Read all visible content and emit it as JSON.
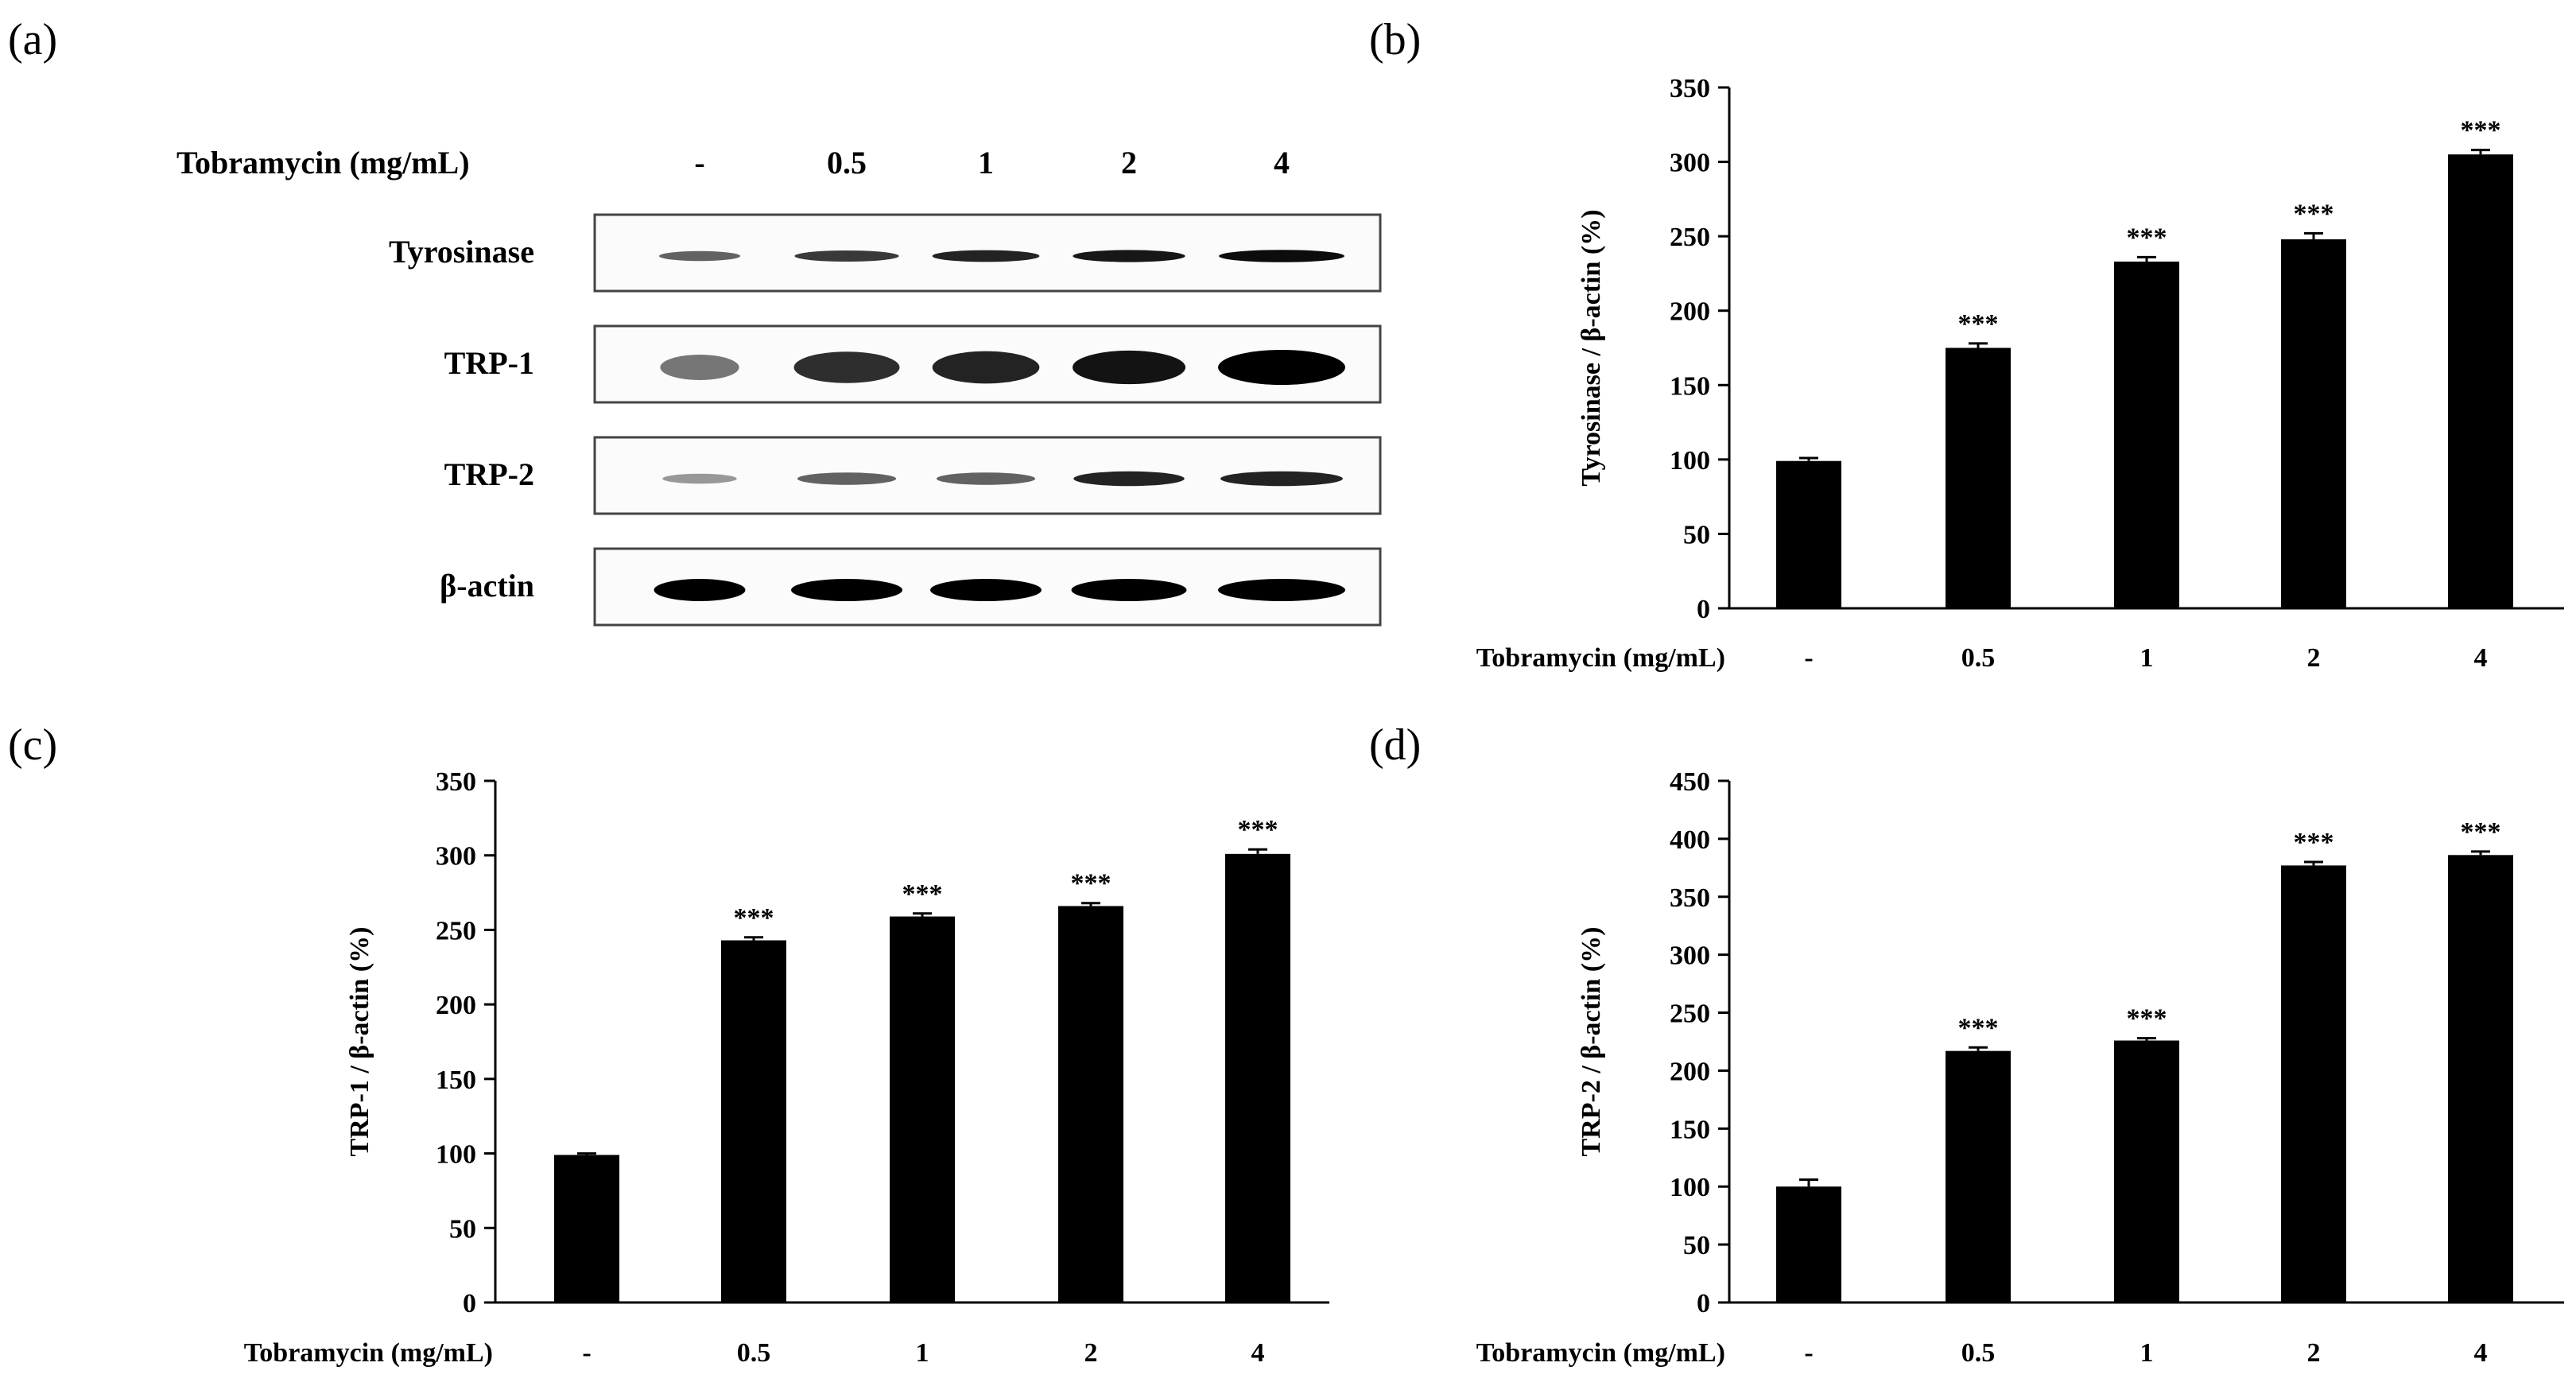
{
  "panels": {
    "a": "(a)",
    "b": "(b)",
    "c": "(c)",
    "d": "(d)"
  },
  "blot": {
    "treatment_label": "Tobramycin (mg/mL)",
    "lanes": [
      "-",
      "0.5",
      "1",
      "2",
      "4"
    ],
    "rows": [
      {
        "name": "Tyrosinase",
        "intensity": [
          0.55,
          0.75,
          0.85,
          0.9,
          0.95
        ]
      },
      {
        "name": "TRP-1",
        "intensity": [
          0.45,
          0.8,
          0.85,
          0.92,
          1.0
        ]
      },
      {
        "name": "TRP-2",
        "intensity": [
          0.25,
          0.55,
          0.55,
          0.85,
          0.85
        ]
      },
      {
        "name": "β-actin",
        "intensity": [
          1.0,
          1.0,
          1.0,
          1.0,
          1.0
        ]
      }
    ]
  },
  "chart_data": [
    {
      "panel": "b",
      "type": "bar",
      "categories": [
        "-",
        "0.5",
        "1",
        "2",
        "4"
      ],
      "values": [
        99,
        175,
        233,
        248,
        305
      ],
      "errors": [
        2,
        3,
        3,
        4,
        3
      ],
      "significance": [
        "",
        "***",
        "***",
        "***",
        "***"
      ],
      "ylabel": "Tyrosinase / β-actin (%)",
      "xlabel": "Tobramycin (mg/mL)",
      "ylim": [
        0,
        350
      ],
      "yticks": [
        0,
        50,
        100,
        150,
        200,
        250,
        300,
        350
      ]
    },
    {
      "panel": "c",
      "type": "bar",
      "categories": [
        "-",
        "0.5",
        "1",
        "2",
        "4"
      ],
      "values": [
        99,
        243,
        259,
        266,
        301
      ],
      "errors": [
        1,
        2,
        2,
        2,
        3
      ],
      "significance": [
        "",
        "***",
        "***",
        "***",
        "***"
      ],
      "ylabel": "TRP-1 / β-actin (%)",
      "xlabel": "Tobramycin (mg/mL)",
      "ylim": [
        0,
        350
      ],
      "yticks": [
        0,
        50,
        100,
        150,
        200,
        250,
        300,
        350
      ]
    },
    {
      "panel": "d",
      "type": "bar",
      "categories": [
        "-",
        "0.5",
        "1",
        "2",
        "4"
      ],
      "values": [
        100,
        217,
        226,
        377,
        386
      ],
      "errors": [
        6,
        3,
        2,
        3,
        3
      ],
      "significance": [
        "",
        "***",
        "***",
        "***",
        "***"
      ],
      "ylabel": "TRP-2 / β-actin (%)",
      "xlabel": "Tobramycin (mg/mL)",
      "ylim": [
        0,
        450
      ],
      "yticks": [
        0,
        50,
        100,
        150,
        200,
        250,
        300,
        350,
        400,
        450
      ]
    }
  ]
}
